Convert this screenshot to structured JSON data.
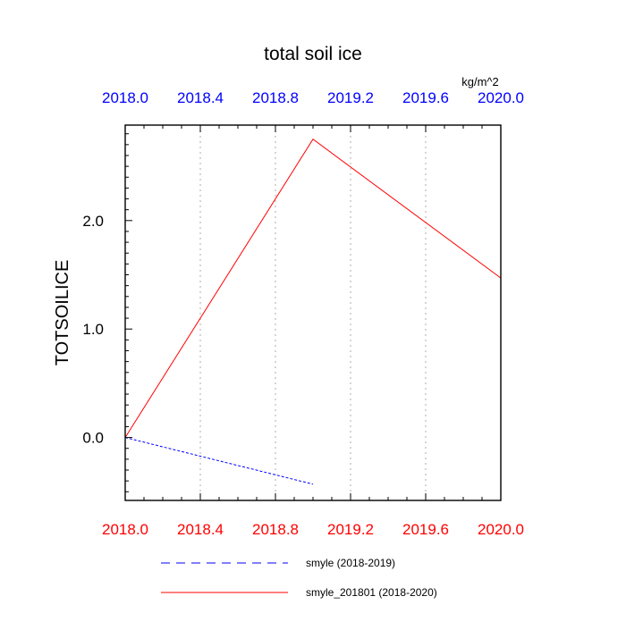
{
  "chart_data": {
    "type": "line",
    "title": "total soil ice",
    "units": "kg/m^2",
    "ylabel": "TOTSOILICE",
    "xlim": [
      2018.0,
      2020.0
    ],
    "ylim": [
      -0.58,
      2.88
    ],
    "x_ticks": [
      "2018.0",
      "2018.4",
      "2018.8",
      "2019.2",
      "2019.6",
      "2020.0"
    ],
    "x_tick_values": [
      2018.0,
      2018.4,
      2018.8,
      2019.2,
      2019.6,
      2020.0
    ],
    "y_ticks": [
      "0.0",
      "1.0",
      "2.0"
    ],
    "y_tick_values": [
      0.0,
      1.0,
      2.0
    ],
    "grid": "x-only dotted",
    "top_axis_color": "#0000ff",
    "bottom_axis_color": "#ff0000",
    "legend_position": "bottom",
    "series": [
      {
        "name": "smyle (2018-2019)",
        "x": [
          2018.0,
          2019.0
        ],
        "y": [
          0.0,
          -0.43
        ],
        "color": "#0000ff",
        "style": "dashed"
      },
      {
        "name": "smyle_201801 (2018-2020)",
        "x": [
          2018.0,
          2019.0,
          2020.0
        ],
        "y": [
          0.0,
          2.75,
          1.47
        ],
        "color": "#ff0000",
        "style": "solid"
      }
    ]
  }
}
